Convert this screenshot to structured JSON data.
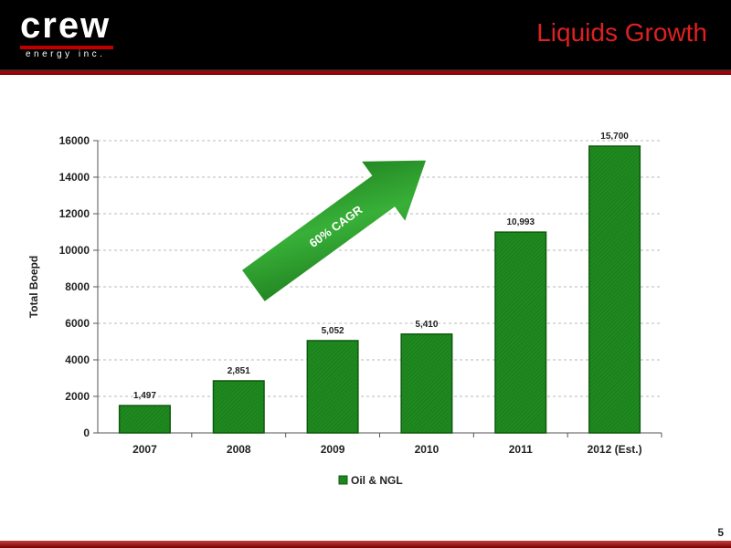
{
  "header": {
    "logo_word": "crew",
    "logo_sub": "energy inc.",
    "title": "Liquids Growth"
  },
  "page_number": "5",
  "colors": {
    "bar": "#1f8a1f",
    "bar_dark": "#0d5a0d",
    "arrow": "#2a9a2a",
    "title_red": "#e02020",
    "grid": "#b8b8b8"
  },
  "chart_data": {
    "type": "bar",
    "categories": [
      "2007",
      "2008",
      "2009",
      "2010",
      "2011",
      "2012 (Est.)"
    ],
    "series": [
      {
        "name": "Oil & NGL",
        "values": [
          1497,
          2851,
          5052,
          5410,
          10993,
          15700
        ],
        "labels": [
          "1,497",
          "2,851",
          "5,052",
          "5,410",
          "10,993",
          "15,700"
        ]
      }
    ],
    "ylabel": "Total Boepd",
    "ylim": [
      0,
      16000
    ],
    "yticks": [
      0,
      2000,
      4000,
      6000,
      8000,
      10000,
      12000,
      14000,
      16000
    ],
    "grid": true,
    "legend": "bottom",
    "annotation": "60% CAGR"
  }
}
